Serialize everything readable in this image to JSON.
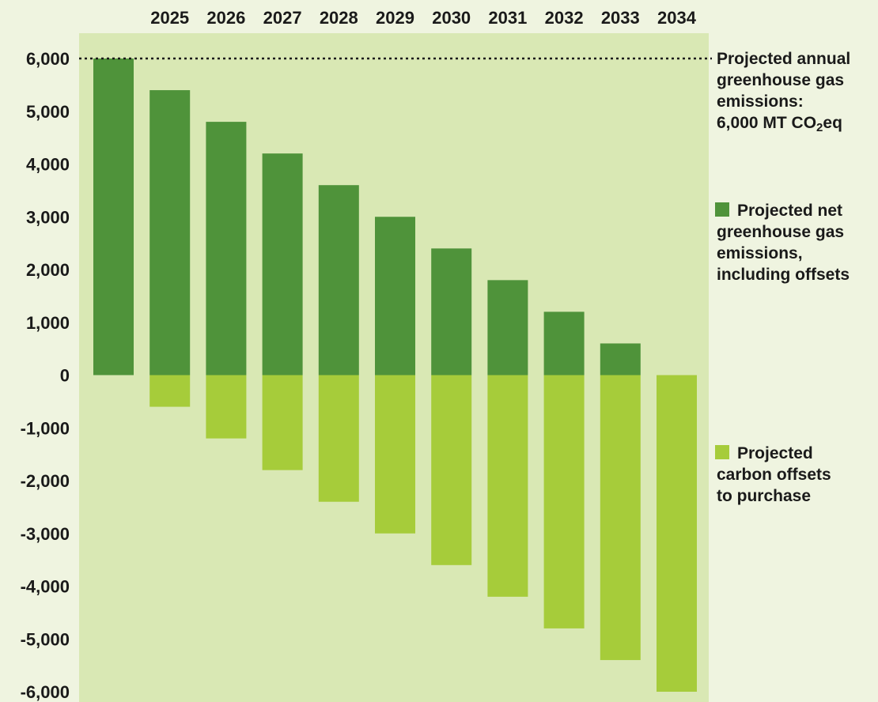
{
  "chart_data": {
    "type": "bar",
    "stacked": true,
    "categories": [
      "",
      "2025",
      "2026",
      "2027",
      "2028",
      "2029",
      "2030",
      "2031",
      "2032",
      "2033",
      "2034"
    ],
    "category_label_position": "top",
    "ylim": [
      -6000,
      6000
    ],
    "y_ticks": [
      6000,
      5000,
      4000,
      3000,
      2000,
      1000,
      0,
      -1000,
      -2000,
      -3000,
      -4000,
      -5000,
      -6000
    ],
    "y_tick_labels": [
      "6,000",
      "5,000",
      "4,000",
      "3,000",
      "2,000",
      "1,000",
      "0",
      "-1,000",
      "-2,000",
      "-3,000",
      "-4,000",
      "-5,000",
      "-6,000"
    ],
    "grid": false,
    "series": [
      {
        "name": "Projected net greenhouse gas emissions, including offsets",
        "color": "#4f933a",
        "values": [
          6000,
          5400,
          4800,
          4200,
          3600,
          3000,
          2400,
          1800,
          1200,
          600,
          0
        ]
      },
      {
        "name": "Projected carbon offsets to purchase",
        "color": "#a6cc3a",
        "values": [
          0,
          -600,
          -1200,
          -1800,
          -2400,
          -3000,
          -3600,
          -4200,
          -4800,
          -5400,
          -6000
        ]
      }
    ],
    "reference_line": {
      "value": 6000,
      "style": "dotted",
      "label_lines": [
        "Projected annual",
        "greenhouse gas",
        "emissions:"
      ],
      "label_value": "6,000 MT CO",
      "label_subscript": "2",
      "label_suffix": "eq"
    },
    "legend": {
      "placement": "right",
      "items": [
        {
          "lines": [
            "Projected net",
            "greenhouse gas",
            "emissions,",
            "including offsets"
          ],
          "color": "#4f933a"
        },
        {
          "lines": [
            "Projected",
            "carbon offsets",
            "to purchase"
          ],
          "color": "#a6cc3a"
        }
      ]
    },
    "plot_background": "#d9e8b4",
    "page_background": "#eff4e0"
  }
}
